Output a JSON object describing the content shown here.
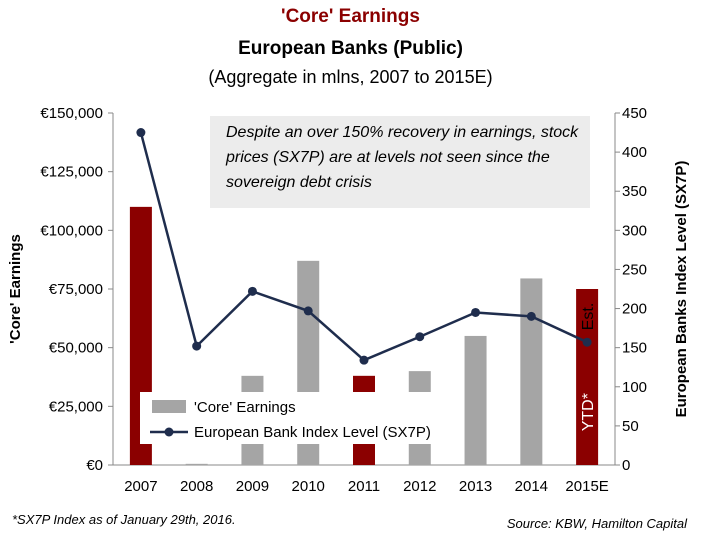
{
  "chart_data": {
    "type": "bar+line",
    "title": "'Core' Earnings",
    "subtitle": "European Banks (Public)",
    "subtitle2": "(Aggregate in mlns, 2007 to 2015E)",
    "categories": [
      "2007",
      "2008",
      "2009",
      "2010",
      "2011",
      "2012",
      "2013",
      "2014",
      "2015E"
    ],
    "series": [
      {
        "name": "'Core' Earnings",
        "type": "bar",
        "axis": "left",
        "values": [
          110000,
          500,
          38000,
          87000,
          38000,
          40000,
          55000,
          79500,
          75000
        ],
        "highlight": [
          true,
          false,
          false,
          false,
          true,
          false,
          false,
          false,
          true
        ],
        "color": "#a5a5a5",
        "highlight_color": "#8b0000"
      },
      {
        "name": "European Bank Index Level (SX7P)",
        "type": "line",
        "axis": "right",
        "values": [
          425,
          152,
          222,
          197,
          134,
          164,
          195,
          190,
          157
        ],
        "color": "#1f2d4d"
      }
    ],
    "ylabel_left": "'Core' Earnings",
    "ylabel_right": "European Banks Index Level (SX7P)",
    "ylim_left": [
      0,
      150000
    ],
    "ylim_right": [
      0,
      450
    ],
    "yticks_left": [
      "€0",
      "€25,000",
      "€50,000",
      "€75,000",
      "€100,000",
      "€125,000",
      "€150,000"
    ],
    "yticks_right": [
      "0",
      "50",
      "100",
      "150",
      "200",
      "250",
      "300",
      "350",
      "400",
      "450"
    ],
    "legend_placement": "bottom-left",
    "grid": false,
    "annotation": "Despite an over 150% recovery in earnings, stock prices (SX7P) are at levels not seen since the sovereign debt crisis",
    "bar_label_2015": "YTD*",
    "est_label": "Est."
  },
  "footnote_left": "*SX7P Index as of January 29th, 2016.",
  "footnote_right": "Source: KBW, Hamilton Capital"
}
